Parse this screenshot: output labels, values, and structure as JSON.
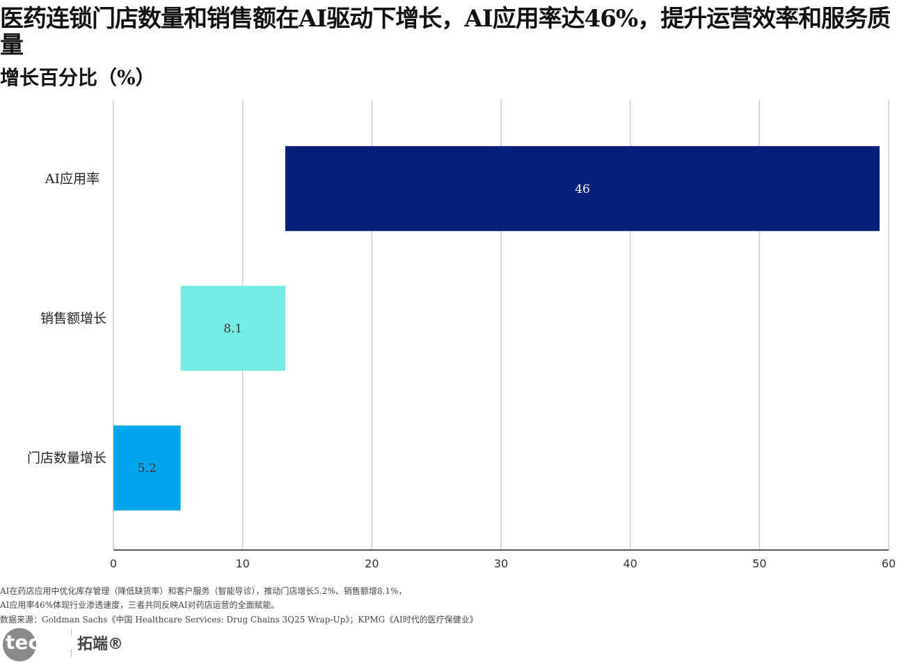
{
  "chart_data": {
    "type": "bar",
    "orientation": "horizontal",
    "stacking": "waterfall",
    "title": "医药连锁门店数量和销售额在AI驱动下增长，AI应用率达46%，提升运营效率和服务质量",
    "subtitle": "增长百分比（%）",
    "categories": [
      "AI应用率",
      "销售额增长",
      "门店数量增长"
    ],
    "values": [
      46,
      8.1,
      5.2
    ],
    "data_labels": [
      "46",
      "8.1",
      "5.2"
    ],
    "colors": [
      "#061f78",
      "#74ece4",
      "#02a6ef"
    ],
    "xlim": [
      0,
      60
    ],
    "xticks": [
      "0",
      "10",
      "20",
      "30",
      "40",
      "50",
      "60"
    ],
    "grid": true
  },
  "notes": [
    "AI在药店应用中优化库存管理（降低缺货率）和客户服务（智能导诊），推动门店增长5.2%、销售额增8.1%，",
    "AI应用率46%体现行业渗透速度，三者共同反映AI对药店运营的全面赋能。",
    "数据来源：Goldman Sachs《中国 Healthcare Services: Drug Chains 3Q25 Wrap-Up》；KPMG《AI时代的医疗保健业》"
  ],
  "logo": {
    "text": "tecdat",
    "cn": "拓端®"
  }
}
